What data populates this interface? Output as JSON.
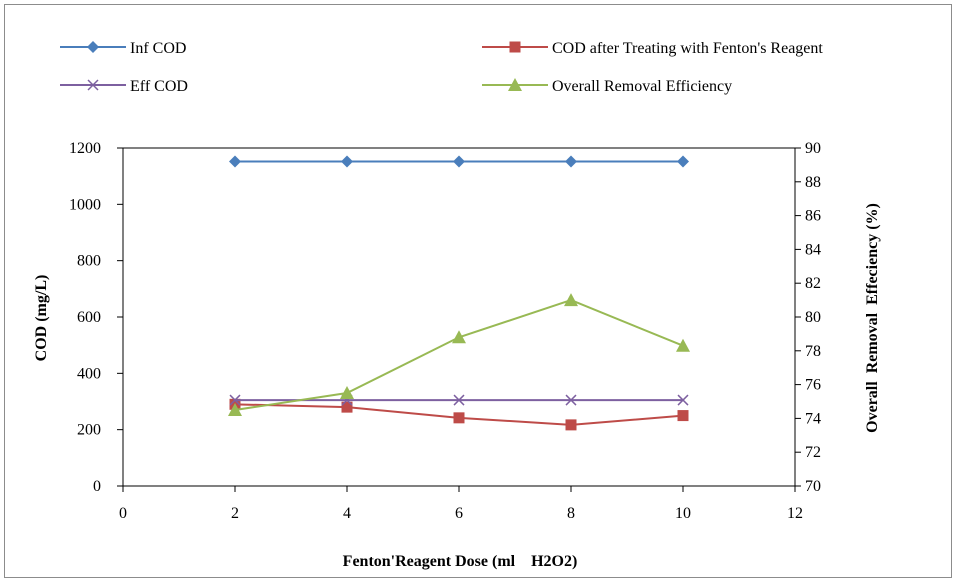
{
  "chart_data": {
    "type": "line",
    "xlabel": "Fenton'Reagent Dose (ml    H2O2)",
    "ylabel": "COD (mg/L)",
    "y2label": "Overall  Removal  Effeciency (%)",
    "xlim": [
      0,
      12
    ],
    "ylim": [
      0,
      1200
    ],
    "y2lim": [
      70,
      90
    ],
    "x_ticks": [
      0,
      2,
      4,
      6,
      8,
      10,
      12
    ],
    "y_ticks": [
      0,
      200,
      400,
      600,
      800,
      1000,
      1200
    ],
    "y2_ticks": [
      70,
      72,
      74,
      76,
      78,
      80,
      82,
      84,
      86,
      88,
      90
    ],
    "grid": false,
    "legend_position": "top",
    "x": [
      2,
      4,
      6,
      8,
      10
    ],
    "series": [
      {
        "name": "Inf COD",
        "axis": "left",
        "marker": "diamond",
        "color": "#4a7ebb",
        "values": [
          1152,
          1152,
          1152,
          1152,
          1152
        ]
      },
      {
        "name": "COD after Treating with Fenton's Reagent",
        "axis": "left",
        "marker": "square",
        "color": "#be4b48",
        "values": [
          290,
          280,
          242,
          217,
          250
        ]
      },
      {
        "name": "Eff COD",
        "axis": "left",
        "marker": "x",
        "color": "#7d60a0",
        "values": [
          305,
          305,
          305,
          305,
          305
        ]
      },
      {
        "name": "Overall Removal Efficiency",
        "axis": "right",
        "marker": "triangle",
        "color": "#98b954",
        "values": [
          74.5,
          75.5,
          78.8,
          81.0,
          78.3
        ]
      }
    ]
  }
}
